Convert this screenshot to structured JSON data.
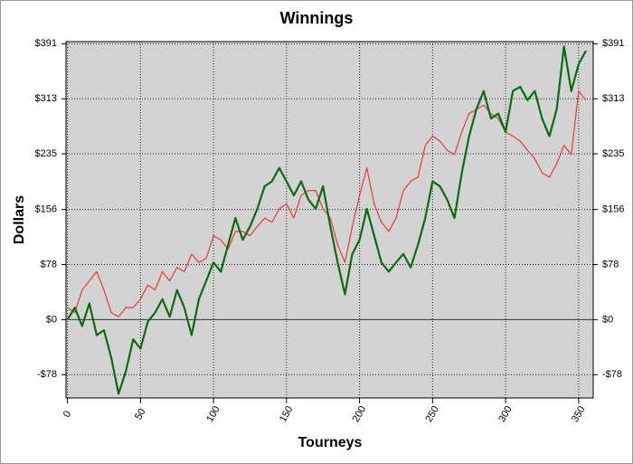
{
  "chart_data": {
    "type": "line",
    "title": "Winnings",
    "xlabel": "Tourneys",
    "ylabel": "Dollars",
    "x": [
      0,
      5,
      10,
      15,
      20,
      25,
      30,
      35,
      40,
      45,
      50,
      55,
      60,
      65,
      70,
      75,
      80,
      85,
      90,
      95,
      100,
      105,
      110,
      115,
      120,
      125,
      130,
      135,
      140,
      145,
      150,
      155,
      160,
      165,
      170,
      175,
      180,
      185,
      190,
      195,
      200,
      205,
      210,
      215,
      220,
      225,
      230,
      235,
      240,
      245,
      250,
      255,
      260,
      265,
      270,
      275,
      280,
      285,
      290,
      295,
      300,
      305,
      310,
      315,
      320,
      325,
      330,
      335,
      340,
      345,
      350,
      355
    ],
    "series": [
      {
        "color": "#e83a3a",
        "width": 1.2,
        "values": [
          17,
          10,
          42,
          55,
          68,
          42,
          10,
          4,
          17,
          17,
          29,
          49,
          42,
          68,
          55,
          74,
          68,
          93,
          81,
          87,
          119,
          113,
          100,
          125,
          125,
          119,
          132,
          144,
          138,
          157,
          164,
          144,
          176,
          183,
          183,
          157,
          144,
          106,
          81,
          132,
          176,
          215,
          164,
          138,
          125,
          144,
          183,
          196,
          202,
          247,
          260,
          253,
          240,
          234,
          266,
          292,
          298,
          304,
          292,
          285,
          266,
          260,
          253,
          240,
          228,
          208,
          202,
          221,
          247,
          234,
          324,
          311
        ]
      },
      {
        "color": "#0b6b12",
        "width": 2.2,
        "values": [
          0,
          17,
          -9,
          23,
          -22,
          -15,
          -54,
          -105,
          -73,
          -28,
          -41,
          -3,
          10,
          29,
          4,
          42,
          17,
          -22,
          29,
          55,
          81,
          68,
          106,
          144,
          113,
          132,
          157,
          189,
          196,
          215,
          196,
          176,
          196,
          170,
          157,
          189,
          132,
          81,
          36,
          93,
          113,
          157,
          119,
          81,
          68,
          81,
          93,
          74,
          106,
          144,
          196,
          189,
          170,
          144,
          208,
          260,
          298,
          324,
          285,
          292,
          266,
          324,
          330,
          311,
          324,
          285,
          260,
          298,
          387,
          324,
          362,
          381
        ]
      }
    ],
    "xlim": [
      -1,
      360
    ],
    "xticks": [
      0,
      50,
      100,
      150,
      200,
      250,
      300,
      350
    ],
    "ylim": [
      -111,
      394
    ],
    "yticks": [
      {
        "value": -78,
        "label": "-$78"
      },
      {
        "value": 0,
        "label": "$0"
      },
      {
        "value": 78,
        "label": "$78"
      },
      {
        "value": 156,
        "label": "$156"
      },
      {
        "value": 235,
        "label": "$235"
      },
      {
        "value": 313,
        "label": "$313"
      },
      {
        "value": 391,
        "label": "$391"
      }
    ],
    "grid": true
  }
}
